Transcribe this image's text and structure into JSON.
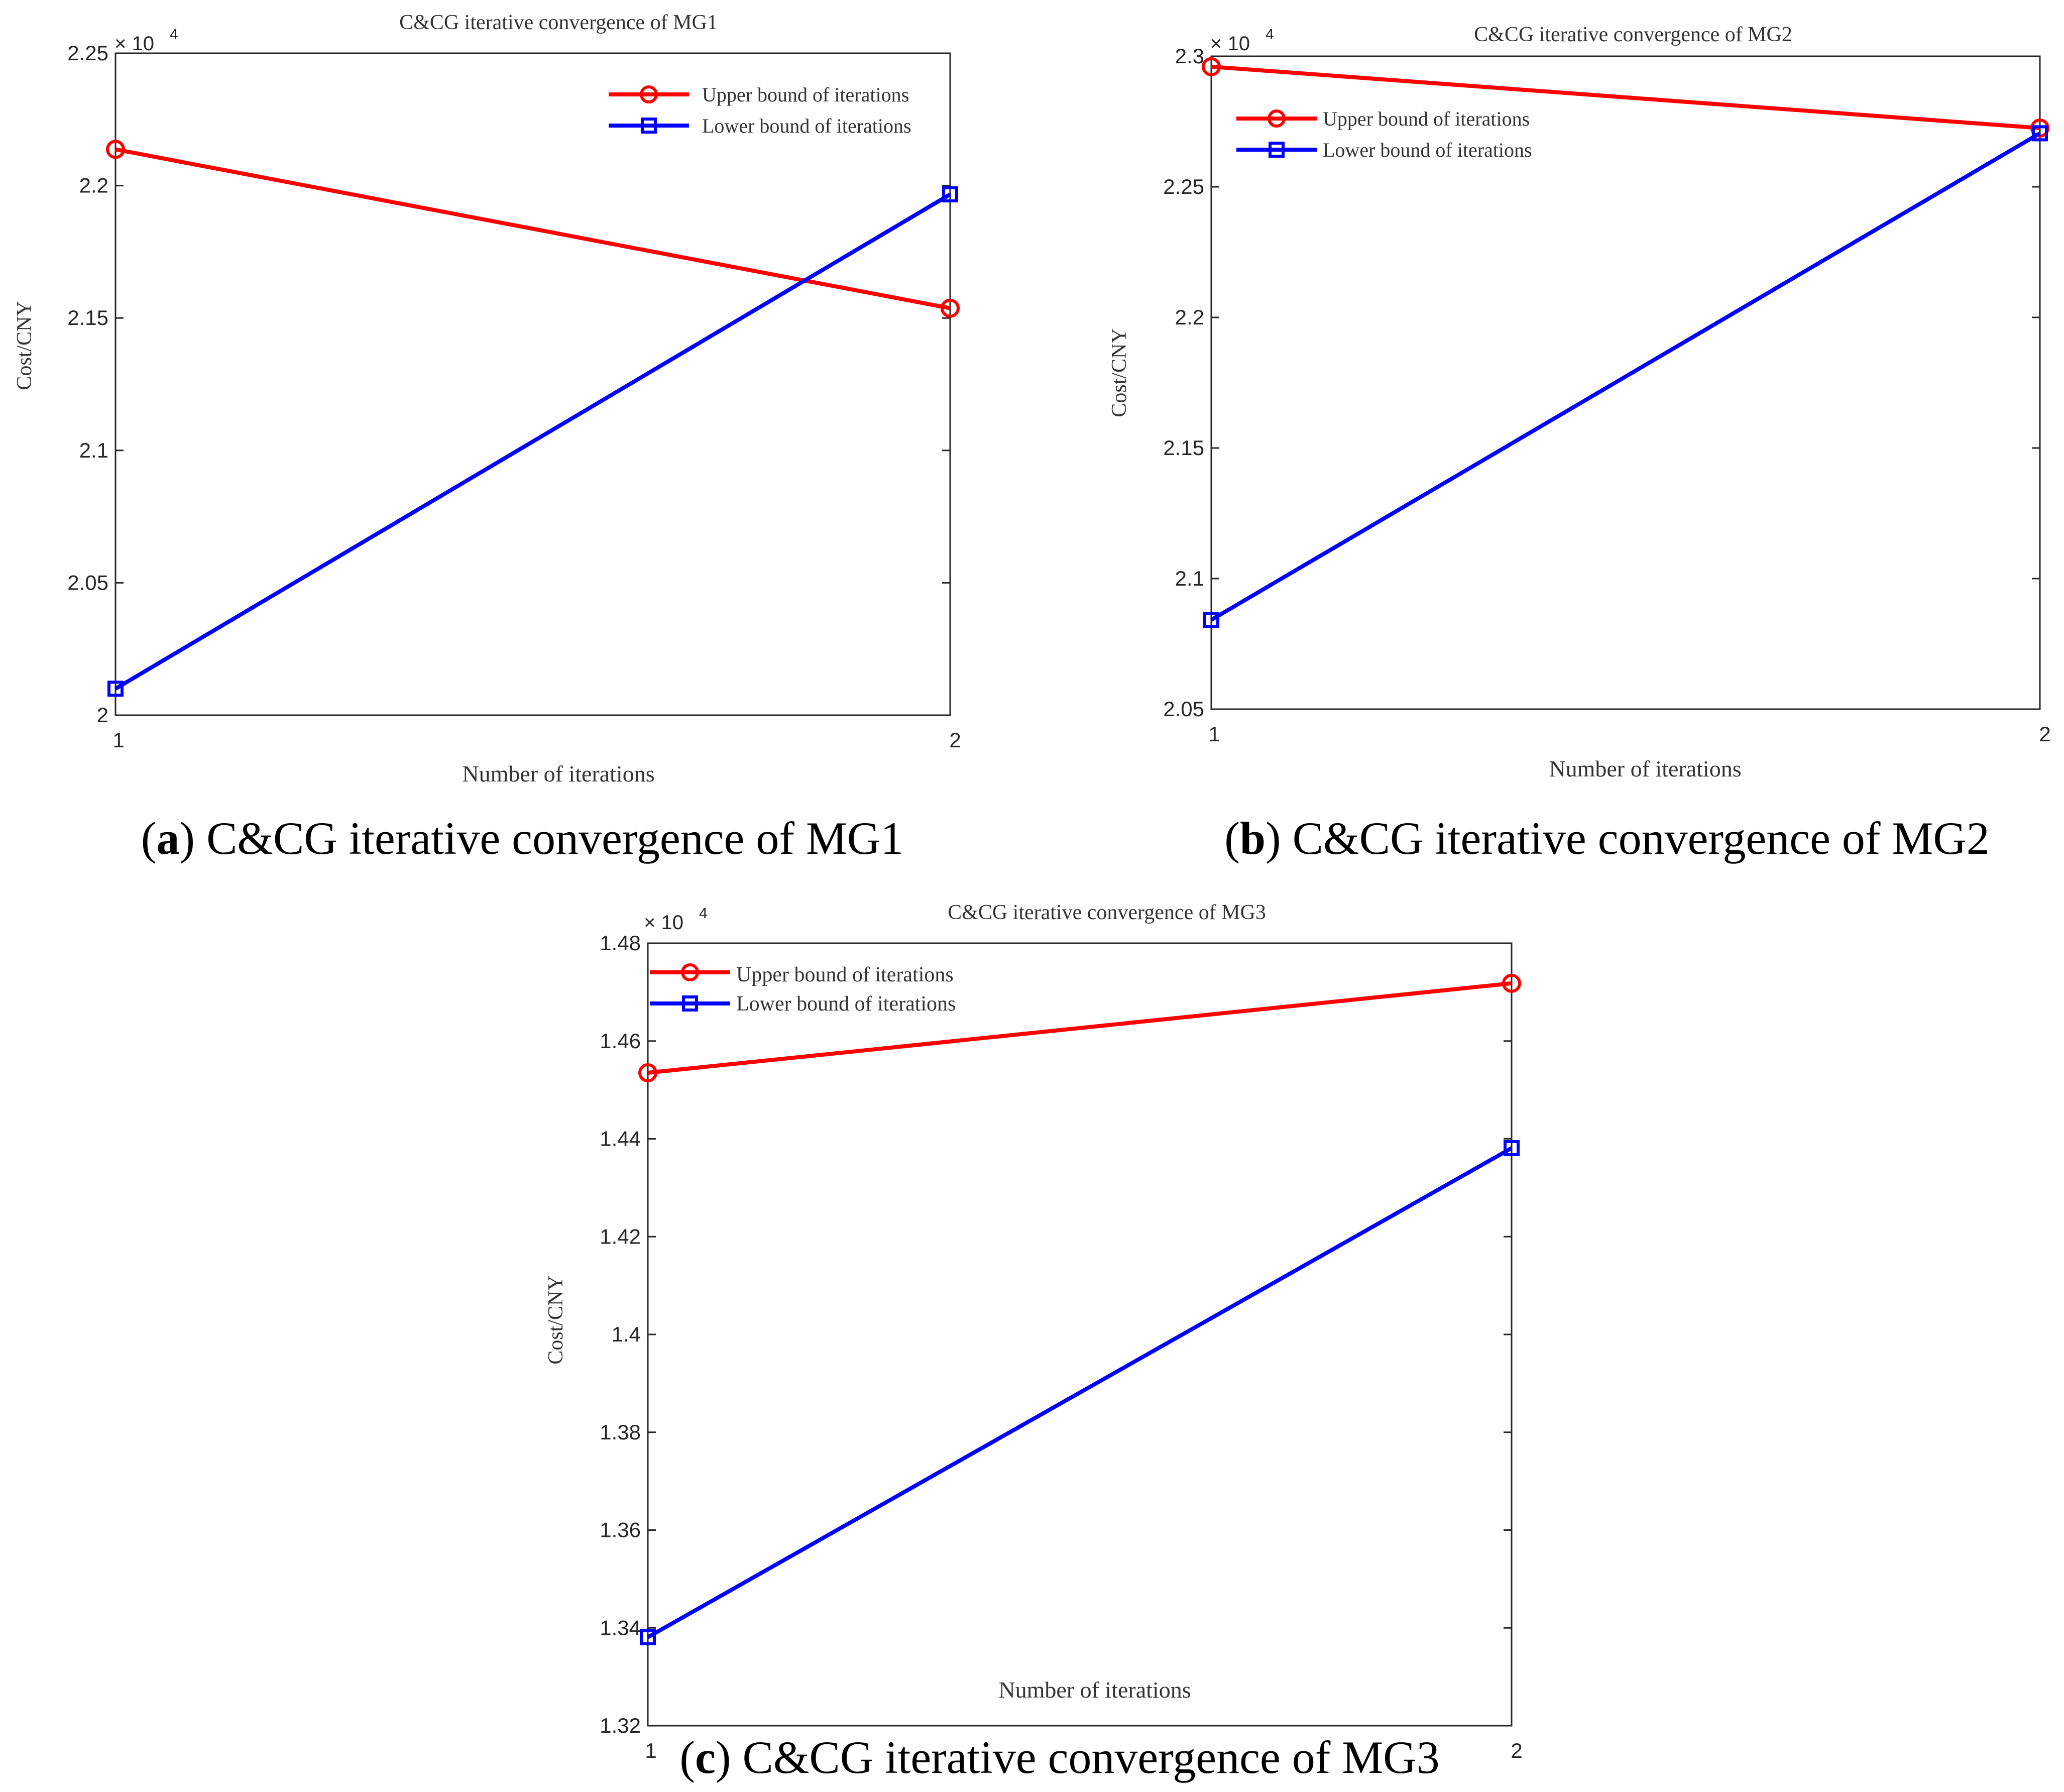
{
  "charts": [
    {
      "id": "a",
      "chart_data": {
        "type": "line",
        "title": "C&CG iterative convergence of MG1",
        "xlabel": "Number of iterations",
        "ylabel": "Cost/CNY",
        "exponent_base": "× 10",
        "exponent_power": "4",
        "x": [
          1,
          2
        ],
        "x_ticks": [
          "1",
          "2"
        ],
        "xlim": [
          1,
          2
        ],
        "ylim": [
          20000,
          22500
        ],
        "y_ticks": [
          20000,
          20500,
          21000,
          21500,
          22000,
          22500
        ],
        "y_tick_labels": [
          "2",
          "2.05",
          "2.1",
          "2.15",
          "2.2",
          "2.25"
        ],
        "legend_position": "top-right",
        "series": [
          {
            "name": "Upper bound of iterations",
            "color": "#ff0000",
            "marker": "circle",
            "values": [
              22137,
              21537
            ]
          },
          {
            "name": "Lower bound of iterations",
            "color": "#0000ff",
            "marker": "square",
            "values": [
              20100,
              21967
            ]
          }
        ]
      },
      "caption": {
        "letter": "a",
        "text": "C&CG iterative convergence of MG1"
      }
    },
    {
      "id": "b",
      "chart_data": {
        "type": "line",
        "title": "C&CG iterative convergence of MG2",
        "xlabel": "Number of iterations",
        "ylabel": "Cost/CNY",
        "exponent_base": "× 10",
        "exponent_power": "4",
        "x": [
          1,
          2
        ],
        "x_ticks": [
          "1",
          "2"
        ],
        "xlim": [
          1,
          2
        ],
        "ylim": [
          20500,
          23000
        ],
        "y_ticks": [
          20500,
          21000,
          21500,
          22000,
          22500,
          23000
        ],
        "y_tick_labels": [
          "2.05",
          "2.1",
          "2.15",
          "2.2",
          "2.25",
          "2.3"
        ],
        "legend_position": "top-left",
        "series": [
          {
            "name": "Upper bound of iterations",
            "color": "#ff0000",
            "marker": "circle",
            "values": [
              22960,
              22725
            ]
          },
          {
            "name": "Lower bound of iterations",
            "color": "#0000ff",
            "marker": "square",
            "values": [
              20842,
              22705
            ]
          }
        ]
      },
      "caption": {
        "letter": "b",
        "text": "C&CG iterative convergence of MG2"
      }
    },
    {
      "id": "c",
      "chart_data": {
        "type": "line",
        "title": "C&CG iterative convergence of MG3",
        "xlabel": "Number of iterations",
        "ylabel": "Cost/CNY",
        "exponent_base": "× 10",
        "exponent_power": "4",
        "x": [
          1,
          2
        ],
        "x_ticks": [
          "1",
          "2"
        ],
        "xlim": [
          1,
          2
        ],
        "ylim": [
          13200,
          14800
        ],
        "y_ticks": [
          13200,
          13400,
          13600,
          13800,
          14000,
          14200,
          14400,
          14600,
          14800
        ],
        "y_tick_labels": [
          "1.32",
          "1.34",
          "1.36",
          "1.38",
          "1.4",
          "1.42",
          "1.44",
          "1.46",
          "1.48"
        ],
        "legend_position": "top-left",
        "series": [
          {
            "name": "Upper bound of iterations",
            "color": "#ff0000",
            "marker": "circle",
            "values": [
              14535,
              14718
            ]
          },
          {
            "name": "Lower bound of iterations",
            "color": "#0000ff",
            "marker": "square",
            "values": [
              13381,
              14381
            ]
          }
        ]
      },
      "caption": {
        "letter": "c",
        "text": "C&CG iterative convergence of MG3"
      }
    }
  ]
}
